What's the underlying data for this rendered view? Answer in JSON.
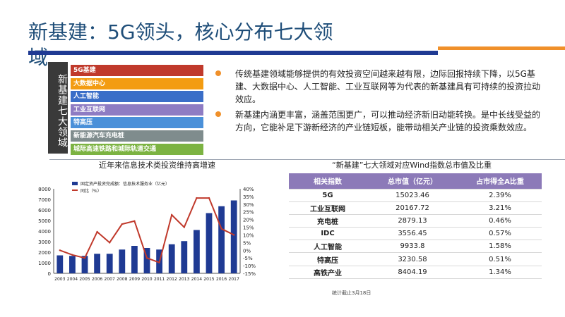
{
  "slide": {
    "title": "新基建：5G领头，核心分布七大领域",
    "side_label": "新基建七大领域",
    "categories": [
      {
        "label": "5G基建",
        "color": "#c0392b"
      },
      {
        "label": "大数据中心",
        "color": "#f39c12"
      },
      {
        "label": "人工智能",
        "color": "#3a6ec8"
      },
      {
        "label": "工业互联网",
        "color": "#8e7cc3"
      },
      {
        "label": "特高压",
        "color": "#4a90d9"
      },
      {
        "label": "新能源汽车充电桩",
        "color": "#7f8c8d"
      },
      {
        "label": "城际高速铁路和城际轨道交通",
        "color": "#7cb342"
      }
    ],
    "bullets": [
      "传统基建领域能够提供的有效投资空间越来越有限，边际回报持续下降，以5G基建、大数据中心、人工智能、工业互联网等为代表的新基建具有可持续的投资拉动效应。",
      "新基建内涵更丰富，涵盖范围更广，可以推动经济新旧动能转换。是中长线受益的方向，它能补足下游新经济的产业链短板，能带动相关产业链的投资乘数效应。"
    ],
    "chart_heading": "近年来信息技术类投资维持高增速",
    "table_heading": "“新基建”七大领域对应Wind指数总市值及比重",
    "footnote": "统计截止3月18日"
  },
  "table": {
    "headers": [
      "相关指数",
      "总市值（亿元）",
      "占市得全A比重"
    ],
    "rows": [
      [
        "5G",
        "15023.46",
        "2.39%"
      ],
      [
        "工业互联网",
        "20167.72",
        "3.21%"
      ],
      [
        "充电桩",
        "2879.13",
        "0.46%"
      ],
      [
        "IDC",
        "3556.45",
        "0.57%"
      ],
      [
        "人工智能",
        "9933.8",
        "1.58%"
      ],
      [
        "特高压",
        "3230.58",
        "0.51%"
      ],
      [
        "高铁产业",
        "8404.19",
        "1.34%"
      ]
    ]
  },
  "chart_data": {
    "type": "bar",
    "categories": [
      "2003",
      "2004",
      "2005",
      "2006",
      "2007",
      "2008",
      "2009",
      "2010",
      "2011",
      "2012",
      "2013",
      "2014",
      "2015",
      "2016",
      "2017"
    ],
    "series": [
      {
        "name": "固定资产投资完成额：信息技术服务业（亿元）",
        "type": "bar",
        "color": "#1f3a93",
        "values": [
          1700,
          1650,
          1650,
          1850,
          1850,
          2250,
          2600,
          2400,
          2250,
          2750,
          3050,
          4100,
          5700,
          6350,
          6900
        ]
      },
      {
        "name": "同比（%）",
        "type": "line",
        "color": "#c0392b",
        "values": [
          0,
          -3,
          -5,
          12,
          5,
          17,
          19,
          -5,
          -8,
          23,
          15,
          34,
          34,
          14,
          10
        ]
      }
    ],
    "y_left": {
      "min": 0,
      "max": 8000,
      "step": 1000,
      "ticks": [
        "0",
        "1000",
        "2000",
        "3000",
        "4000",
        "5000",
        "6000",
        "7000",
        "8000"
      ]
    },
    "y_right": {
      "min": -15,
      "max": 40,
      "step": 5,
      "ticks": [
        "-15%",
        "-10%",
        "-5%",
        "0%",
        "5%",
        "10%",
        "15%",
        "20%",
        "25%",
        "30%",
        "35%",
        "40%"
      ]
    },
    "legend": "top-left"
  }
}
